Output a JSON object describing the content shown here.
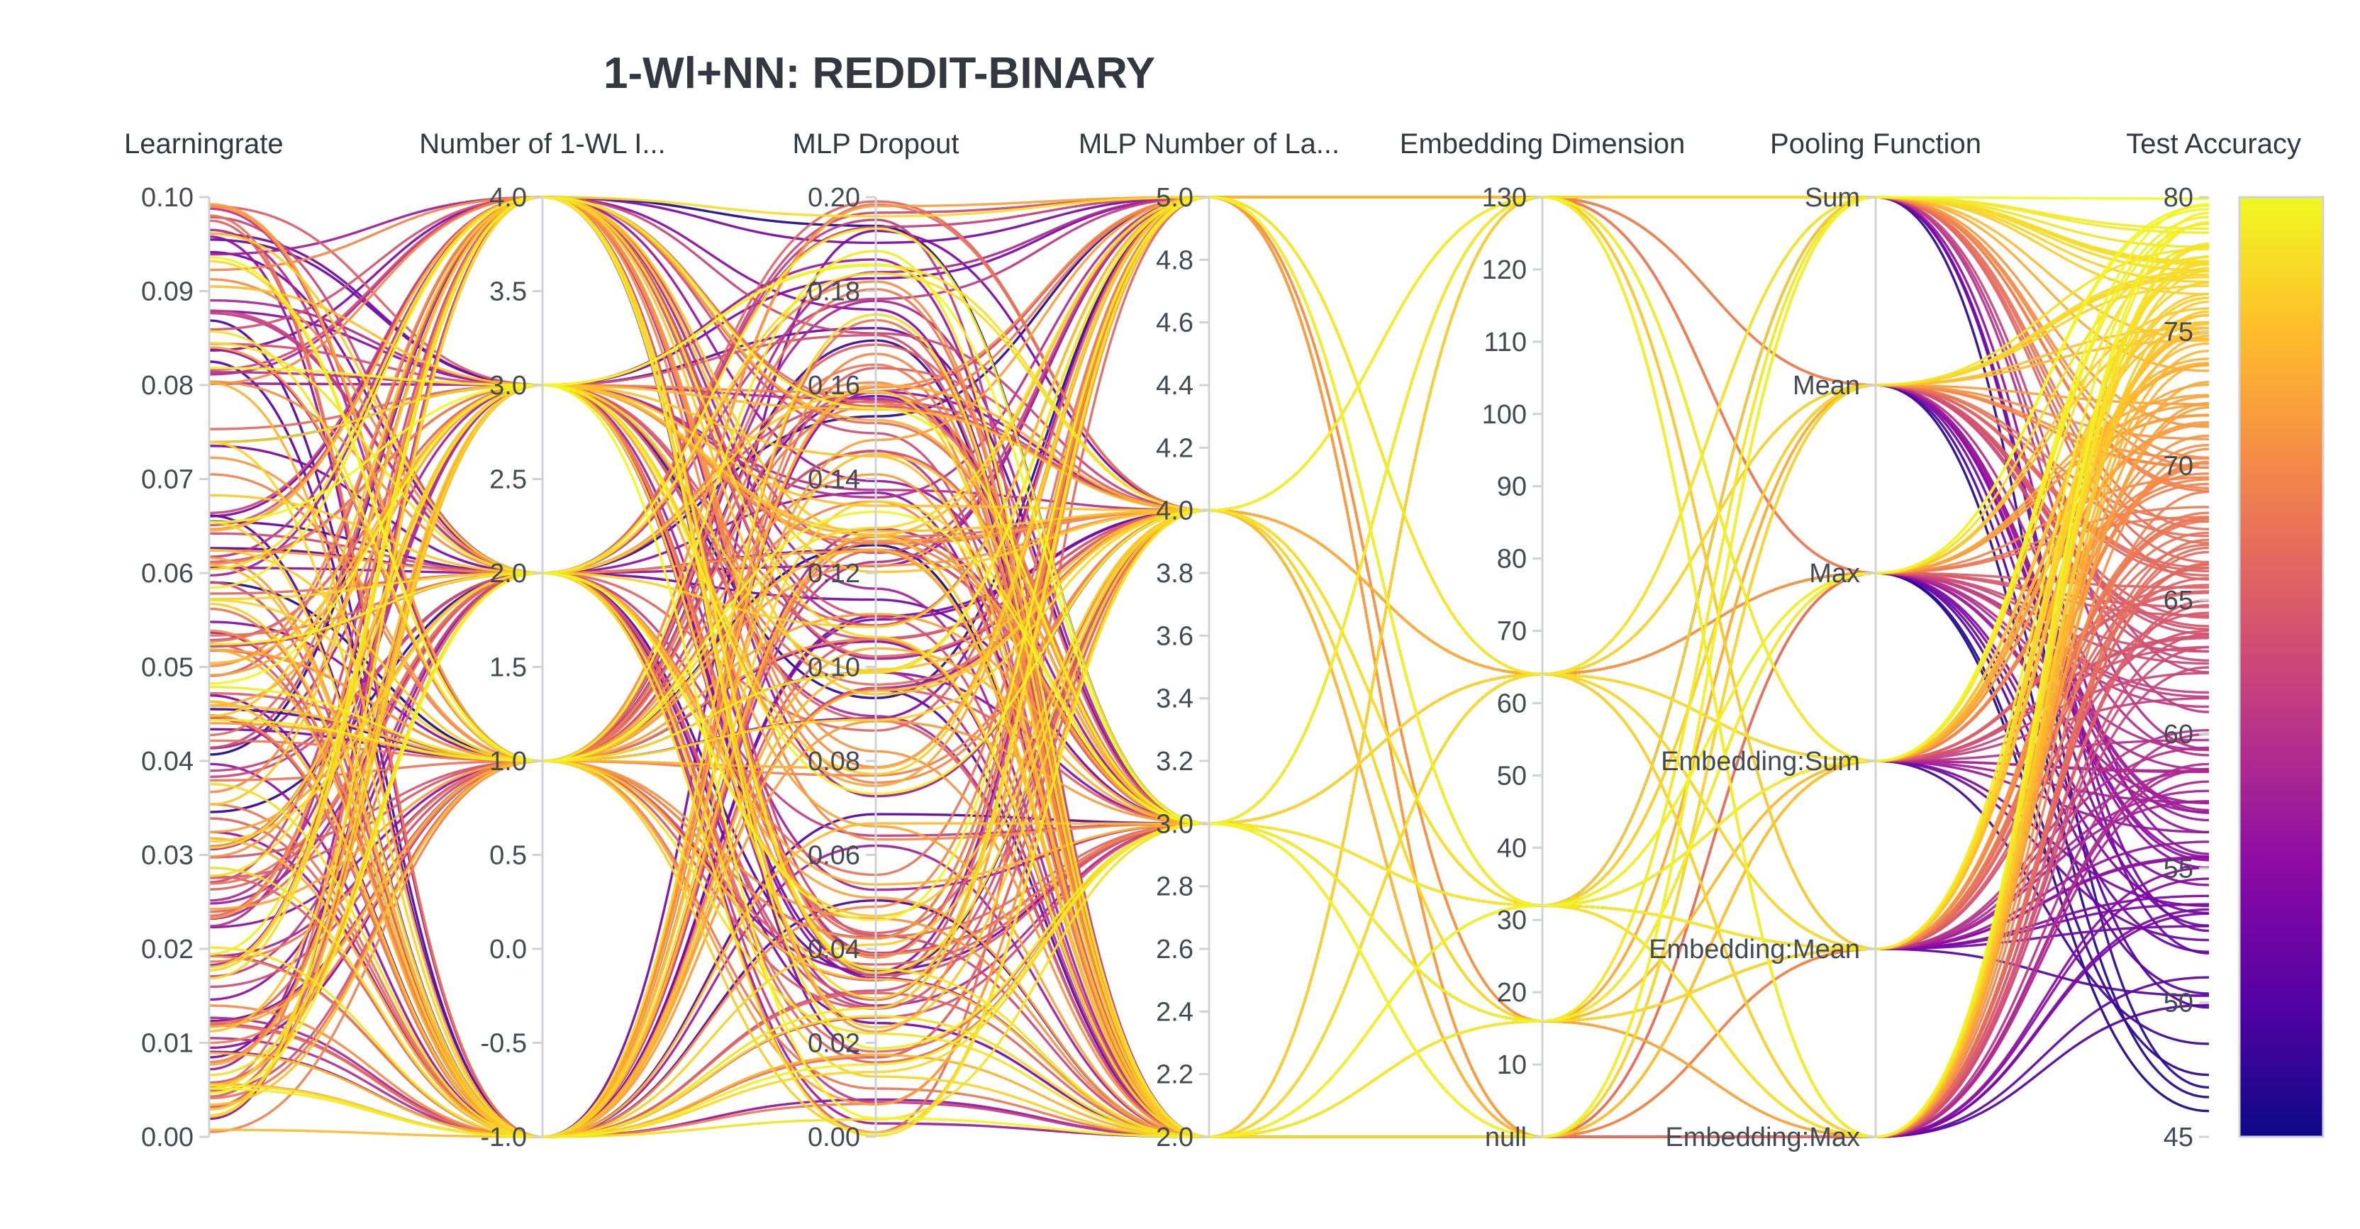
{
  "chart_data": {
    "type": "parallel-coordinates",
    "title": "1-Wl+NN: REDDIT-BINARY",
    "colorscale": [
      "#0d0887",
      "#5302a3",
      "#8b0aa5",
      "#b83289",
      "#db5c68",
      "#f48849",
      "#febd2a",
      "#f0f921"
    ],
    "axes": [
      {
        "label": "Learningrate",
        "ticks": [
          "0.10",
          "0.09",
          "0.08",
          "0.07",
          "0.06",
          "0.05",
          "0.04",
          "0.03",
          "0.02",
          "0.01",
          "0.00"
        ],
        "range": [
          0,
          0.1
        ]
      },
      {
        "label": "Number of 1-WL I...",
        "ticks": [
          "4.0",
          "3.5",
          "3.0",
          "2.5",
          "2.0",
          "1.5",
          "1.0",
          "0.5",
          "0.0",
          "-0.5",
          "-1.0"
        ],
        "range": [
          -1,
          4
        ]
      },
      {
        "label": "MLP Dropout",
        "ticks": [
          "0.20",
          "0.18",
          "0.16",
          "0.14",
          "0.12",
          "0.10",
          "0.08",
          "0.06",
          "0.04",
          "0.02",
          "0.00"
        ],
        "range": [
          0,
          0.2
        ]
      },
      {
        "label": "MLP Number of La...",
        "ticks": [
          "5.0",
          "4.8",
          "4.6",
          "4.4",
          "4.2",
          "4.0",
          "3.8",
          "3.6",
          "3.4",
          "3.2",
          "3.0",
          "2.8",
          "2.6",
          "2.4",
          "2.2",
          "2.0"
        ],
        "range": [
          2,
          5
        ]
      },
      {
        "label": "Embedding Dimension",
        "ticks": [
          "130",
          "120",
          "110",
          "100",
          "90",
          "80",
          "70",
          "60",
          "50",
          "40",
          "30",
          "20",
          "10",
          "null"
        ],
        "range": [
          0,
          130
        ]
      },
      {
        "label": "Pooling Function",
        "ticks": [
          "Sum",
          "Mean",
          "Max",
          "Embedding:Sum",
          "Embedding:Mean",
          "Embedding:Max"
        ],
        "categories": [
          "Sum",
          "Mean",
          "Max",
          "Embedding:Sum",
          "Embedding:Mean",
          "Embedding:Max"
        ]
      },
      {
        "label": "Test Accuracy",
        "ticks": [
          "80",
          "75",
          "70",
          "65",
          "60",
          "55",
          "50",
          "45"
        ],
        "range": [
          45,
          80
        ]
      }
    ],
    "color_by": "Test Accuracy",
    "colorbar_range": [
      45,
      80
    ],
    "discrete_values": {
      "Number of 1-WL I...": [
        -1,
        1,
        2,
        3,
        4
      ],
      "MLP Number of La...": [
        2,
        3,
        4,
        5
      ],
      "Embedding Dimension": [
        "null",
        16,
        32,
        64,
        128
      ]
    },
    "dataset_generator": {
      "n_lines": 200,
      "seed": 20240517
    }
  }
}
